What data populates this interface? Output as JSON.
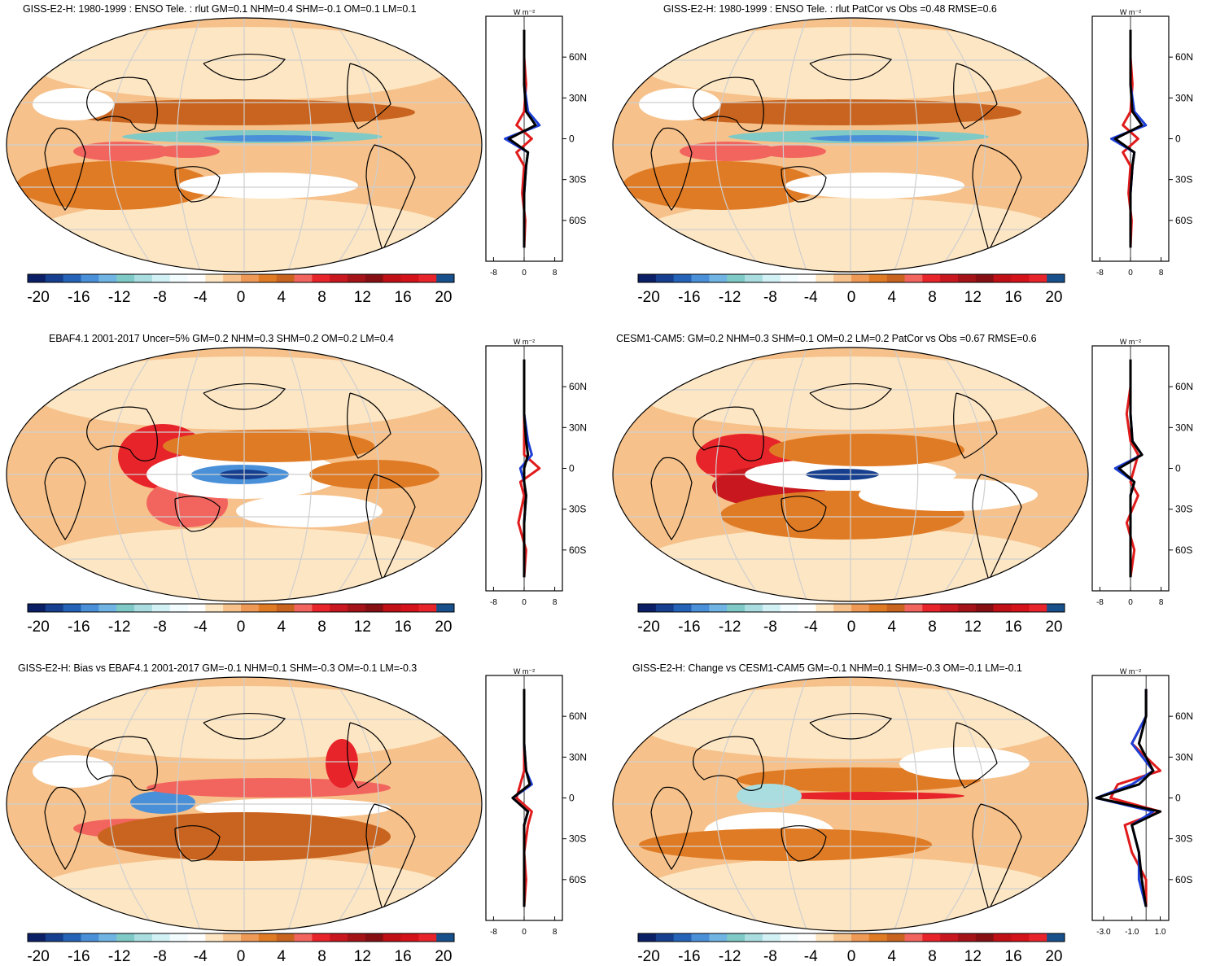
{
  "colorbar": {
    "colors": [
      "#0b1f66",
      "#16408f",
      "#2563b8",
      "#4a90d9",
      "#6fb4e3",
      "#7fcac6",
      "#a9dde0",
      "#d2f1f5",
      "#f2fbfd",
      "#ffffff",
      "#fde6c4",
      "#f6c18a",
      "#ee9a56",
      "#e07b25",
      "#c8641f",
      "#f2655f",
      "#e7242a",
      "#c8171e",
      "#a31318",
      "#860f13",
      "#c01015",
      "#d31219",
      "#e8242b",
      "#17508b"
    ],
    "labels": [
      "-20",
      "-16",
      "-12",
      "-8",
      "-4",
      "0",
      "4",
      "8",
      "12",
      "16",
      "20"
    ]
  },
  "zonal_axes": {
    "units": "W m⁻²",
    "lat_labels": [
      "60N",
      "30N",
      "0",
      "30S",
      "60S"
    ]
  },
  "panels": [
    {
      "title": "GISS-E2-H: 1980-1999 : ENSO Tele. : rlut GM=0.1 NHM=0.4 SHM=-0.1 OM=0.1 LM=0.1",
      "xticks": [
        "-8",
        "0",
        "8"
      ]
    },
    {
      "title": "GISS-E2-H: 1980-1999 : ENSO Tele. : rlut PatCor vs Obs =0.48 RMSE=0.6",
      "xticks": [
        "-8",
        "0",
        "8"
      ]
    },
    {
      "title": "EBAF4.1 2001-2017 Uncer=5% GM=0.2 NHM=0.3 SHM=0.2 OM=0.2 LM=0.4",
      "xticks": [
        "-8",
        "0",
        "8"
      ]
    },
    {
      "title": "CESM1-CAM5: GM=0.2 NHM=0.3 SHM=0.1 OM=0.2 LM=0.2 PatCor vs Obs =0.67 RMSE=0.6",
      "xticks": [
        "-8",
        "0",
        "8"
      ]
    },
    {
      "title": "GISS-E2-H: Bias vs EBAF4.1 2001-2017 GM=-0.1 NHM=0.1 SHM=-0.3 OM=-0.1 LM=-0.3",
      "xticks": [
        "-8",
        "0",
        "8"
      ]
    },
    {
      "title": "GISS-E2-H: Change vs CESM1-CAM5 GM=-0.1 NHM=0.1 SHM=-0.3 OM=-0.1 LM=-0.1",
      "xticks": [
        "-3.0",
        "-1.0",
        "1.0"
      ]
    }
  ],
  "chart_data": {
    "type": "heatmap",
    "colorbar_range": [
      -20,
      20
    ],
    "colorbar_ticks": [
      -20,
      -16,
      -12,
      -8,
      -4,
      0,
      4,
      8,
      12,
      16,
      20
    ],
    "zonal_latitudes": [
      -80,
      -60,
      -40,
      -20,
      -10,
      0,
      10,
      20,
      40,
      60,
      80
    ],
    "zonal_series_colors": [
      "#e01b1b",
      "#1e3fd6",
      "#000000"
    ],
    "zonal_profiles": [
      {
        "xlim": [
          -10,
          10
        ],
        "series": [
          {
            "color": "#e01b1b",
            "values": [
              0,
              0.3,
              -0.5,
              0,
              -2,
              2,
              -2,
              0,
              0.5,
              0,
              0
            ]
          },
          {
            "color": "#1e3fd6",
            "values": [
              0,
              0,
              0,
              0.5,
              1,
              -5,
              4,
              1,
              0,
              0,
              0
            ]
          },
          {
            "color": "#000000",
            "values": [
              0,
              0,
              0,
              0.5,
              1,
              -4,
              3,
              0.5,
              0,
              0,
              0
            ]
          }
        ]
      },
      {
        "xlim": [
          -10,
          10
        ],
        "series": [
          {
            "color": "#e01b1b",
            "values": [
              0,
              0.3,
              -0.5,
              0,
              -2,
              2,
              -2,
              0,
              0.5,
              0,
              0
            ]
          },
          {
            "color": "#1e3fd6",
            "values": [
              0,
              0,
              0,
              0.5,
              1,
              -5,
              4,
              1,
              0,
              0,
              0
            ]
          },
          {
            "color": "#000000",
            "values": [
              0,
              0,
              0,
              0.5,
              1,
              -4,
              3,
              0.5,
              0,
              0,
              0
            ]
          }
        ]
      },
      {
        "xlim": [
          -10,
          10
        ],
        "series": [
          {
            "color": "#e01b1b",
            "values": [
              0,
              0.5,
              -1.5,
              0,
              -1,
              4,
              0,
              0,
              0,
              0,
              0
            ]
          },
          {
            "color": "#1e3fd6",
            "values": [
              0,
              0,
              0,
              0.5,
              0,
              -1,
              2,
              1,
              0,
              0,
              0
            ]
          },
          {
            "color": "#000000",
            "values": [
              0,
              0,
              0,
              0.5,
              0,
              0,
              1,
              0.5,
              0,
              0,
              0
            ]
          }
        ]
      },
      {
        "xlim": [
          -10,
          10
        ],
        "series": [
          {
            "color": "#e01b1b",
            "values": [
              0,
              1,
              -1,
              2,
              0,
              1,
              2,
              0,
              -1,
              0,
              0
            ]
          },
          {
            "color": "#1e3fd6",
            "values": [
              0,
              0,
              0,
              0,
              1,
              -4,
              3,
              0.5,
              0,
              0,
              0
            ]
          },
          {
            "color": "#000000",
            "values": [
              0,
              0,
              0,
              0,
              1,
              -3,
              3,
              0.5,
              0,
              0,
              0
            ]
          }
        ]
      },
      {
        "xlim": [
          -10,
          10
        ],
        "series": [
          {
            "color": "#e01b1b",
            "values": [
              0,
              0.5,
              0,
              1,
              2,
              -2,
              -1,
              0,
              0,
              0,
              0
            ]
          },
          {
            "color": "#1e3fd6",
            "values": [
              0,
              0,
              0,
              0,
              1,
              -3,
              2,
              0.5,
              0,
              0,
              0
            ]
          },
          {
            "color": "#000000",
            "values": [
              0,
              0,
              0,
              0,
              1,
              -3,
              1.5,
              0.5,
              0,
              0,
              0
            ]
          }
        ]
      },
      {
        "xlim": [
          -3.8,
          1.6
        ],
        "series": [
          {
            "color": "#e01b1b",
            "values": [
              0,
              0,
              -1,
              -1.5,
              1,
              -2.5,
              -2,
              1,
              -1,
              0,
              0
            ]
          },
          {
            "color": "#1e3fd6",
            "values": [
              0,
              -0.5,
              -0.5,
              -1,
              0.5,
              -3.5,
              -1,
              0.5,
              -1,
              0,
              0
            ]
          },
          {
            "color": "#000000",
            "values": [
              0,
              -0.3,
              -0.5,
              -1,
              1,
              -3.5,
              -0.5,
              0.5,
              -0.5,
              0,
              0
            ]
          }
        ]
      }
    ]
  }
}
